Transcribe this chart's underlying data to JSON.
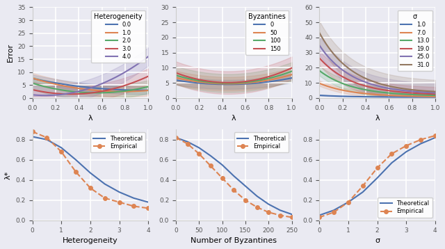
{
  "fig_width": 6.4,
  "fig_height": 3.58,
  "dpi": 100,
  "background_color": "#eaeaf2",
  "grid_color": "white",
  "top_row": {
    "plot1": {
      "title": "Heterogeneity",
      "xlabel": "λ",
      "ylabel": "Error",
      "ylim": [
        0,
        35
      ],
      "xlim": [
        0,
        1
      ],
      "series": [
        {
          "label": "0.0",
          "color": "#4c72b0",
          "het": 0.0
        },
        {
          "label": "1.0",
          "color": "#dd8452",
          "het": 1.0
        },
        {
          "label": "2.0",
          "color": "#55a868",
          "het": 2.0
        },
        {
          "label": "3.0",
          "color": "#c44e52",
          "het": 3.0
        },
        {
          "label": "4.0",
          "color": "#8172b2",
          "het": 4.0
        }
      ]
    },
    "plot2": {
      "title": "Byzantines",
      "xlabel": "λ",
      "ylabel": "",
      "ylim": [
        0,
        30
      ],
      "xlim": [
        0,
        1
      ],
      "series": [
        {
          "label": "0",
          "color": "#4c72b0",
          "byz": 0
        },
        {
          "label": "50",
          "color": "#dd8452",
          "byz": 50
        },
        {
          "label": "100",
          "color": "#55a868",
          "byz": 100
        },
        {
          "label": "150",
          "color": "#c44e52",
          "byz": 150
        }
      ]
    },
    "plot3": {
      "title": "σ",
      "xlabel": "λ",
      "ylabel": "",
      "ylim": [
        0,
        60
      ],
      "xlim": [
        0,
        1
      ],
      "series": [
        {
          "label": "1.0",
          "color": "#4c72b0",
          "sigma": 1.0
        },
        {
          "label": "7.0",
          "color": "#dd8452",
          "sigma": 7.0
        },
        {
          "label": "13.0",
          "color": "#55a868",
          "sigma": 13.0
        },
        {
          "label": "19.0",
          "color": "#c44e52",
          "sigma": 19.0
        },
        {
          "label": "25.0",
          "color": "#8172b2",
          "sigma": 25.0
        },
        {
          "label": "31.0",
          "color": "#937860",
          "sigma": 31.0
        }
      ]
    }
  },
  "bottom_row": {
    "plot1": {
      "xlabel": "Heterogeneity",
      "ylabel": "λ*",
      "xlim": [
        0,
        4
      ],
      "ylim": [
        0,
        0.9
      ],
      "theoretical_x": [
        0.0,
        0.5,
        1.0,
        1.5,
        2.0,
        2.5,
        3.0,
        3.5,
        4.0
      ],
      "theoretical_y": [
        0.83,
        0.8,
        0.72,
        0.6,
        0.47,
        0.36,
        0.28,
        0.22,
        0.18
      ],
      "empirical_x": [
        0.0,
        0.5,
        1.0,
        1.5,
        2.0,
        2.5,
        3.0,
        3.5,
        4.0
      ],
      "empirical_y": [
        0.88,
        0.82,
        0.68,
        0.48,
        0.32,
        0.22,
        0.18,
        0.14,
        0.12
      ]
    },
    "plot2": {
      "xlabel": "Number of Byzantines",
      "ylabel": "",
      "xlim": [
        0,
        250
      ],
      "ylim": [
        0,
        0.9
      ],
      "theoretical_x": [
        0,
        25,
        50,
        75,
        100,
        125,
        150,
        175,
        200,
        225,
        250
      ],
      "theoretical_y": [
        0.82,
        0.78,
        0.72,
        0.64,
        0.55,
        0.44,
        0.34,
        0.24,
        0.16,
        0.1,
        0.06
      ],
      "empirical_x": [
        0,
        25,
        50,
        75,
        100,
        125,
        150,
        175,
        200,
        225,
        250
      ],
      "empirical_y": [
        0.82,
        0.76,
        0.66,
        0.54,
        0.42,
        0.3,
        0.2,
        0.13,
        0.08,
        0.05,
        0.03
      ]
    },
    "plot3": {
      "xlabel": "σ",
      "ylabel": "",
      "xlim": [
        0,
        4
      ],
      "ylim": [
        0,
        0.9
      ],
      "theoretical_x": [
        0.0,
        0.5,
        1.0,
        1.5,
        2.0,
        2.5,
        3.0,
        3.5,
        4.0
      ],
      "theoretical_y": [
        0.05,
        0.1,
        0.18,
        0.28,
        0.42,
        0.57,
        0.68,
        0.76,
        0.82
      ],
      "empirical_x": [
        0.0,
        0.5,
        1.0,
        1.5,
        2.0,
        2.5,
        3.0,
        3.5,
        4.0
      ],
      "empirical_y": [
        0.03,
        0.08,
        0.18,
        0.34,
        0.52,
        0.66,
        0.74,
        0.8,
        0.84
      ]
    }
  },
  "line_theoretical_color": "#4c72b0",
  "line_empirical_color": "#dd8452",
  "empirical_marker": "o",
  "empirical_linestyle": "--"
}
